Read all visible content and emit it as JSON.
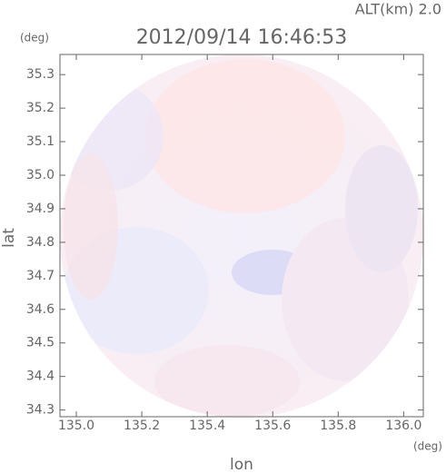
{
  "chart_data": {
    "type": "image",
    "title": "2012/09/14 16:46:53",
    "annotation": "ALT(km) 2.0",
    "xlabel": "lon",
    "ylabel": "lat",
    "xunit": "(deg)",
    "yunit": "(deg)",
    "xlim": [
      134.95,
      136.06
    ],
    "ylim": [
      34.28,
      35.36
    ],
    "xticks": [
      {
        "value": 135,
        "label": "135.0"
      },
      135.2,
      135.4,
      135.6,
      135.8,
      {
        "value": 136,
        "label": "136.0"
      }
    ],
    "yticks": [
      34.3,
      34.4,
      34.5,
      34.6,
      34.7,
      34.8,
      34.9,
      {
        "value": 35,
        "label": "35.0"
      },
      35.1,
      35.2,
      35.3
    ]
  }
}
